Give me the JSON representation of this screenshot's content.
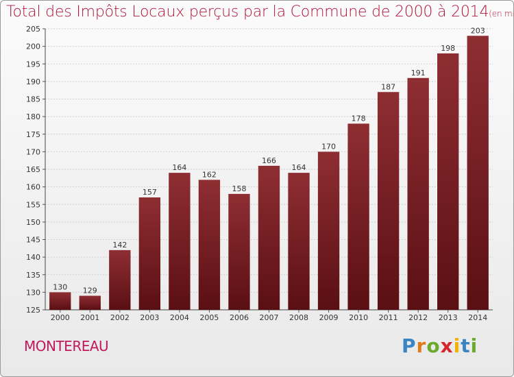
{
  "header": {
    "title": "Total des Impôts Locaux perçus par la Commune de 2000 à 2014",
    "unit": "(en milliers d'€)"
  },
  "footer": {
    "commune": "MONTEREAU",
    "logo_letters": [
      "P",
      "r",
      "o",
      "x",
      "i",
      "t",
      "i"
    ],
    "logo_colors": [
      "#3a84c4",
      "#e07b1a",
      "#6aab2e",
      "#d4262e",
      "#f0b400",
      "#3a84c4",
      "#6aab2e"
    ]
  },
  "colors": {
    "bar": "#7a1f24",
    "bar_light": "#8e2e33",
    "bar_dark": "#5a0f13",
    "title": "#b0123c"
  },
  "chart_data": {
    "type": "bar",
    "categories": [
      "2000",
      "2001",
      "2002",
      "2003",
      "2004",
      "2005",
      "2006",
      "2007",
      "2008",
      "2009",
      "2010",
      "2011",
      "2012",
      "2013",
      "2014"
    ],
    "values": [
      130,
      129,
      142,
      157,
      164,
      162,
      158,
      166,
      164,
      170,
      178,
      187,
      191,
      198,
      203
    ],
    "ylim": [
      125,
      205
    ],
    "yticks": [
      125,
      130,
      135,
      140,
      145,
      150,
      155,
      160,
      165,
      170,
      175,
      180,
      185,
      190,
      195,
      200,
      205
    ],
    "grid": true,
    "xlabel": "",
    "ylabel": ""
  }
}
